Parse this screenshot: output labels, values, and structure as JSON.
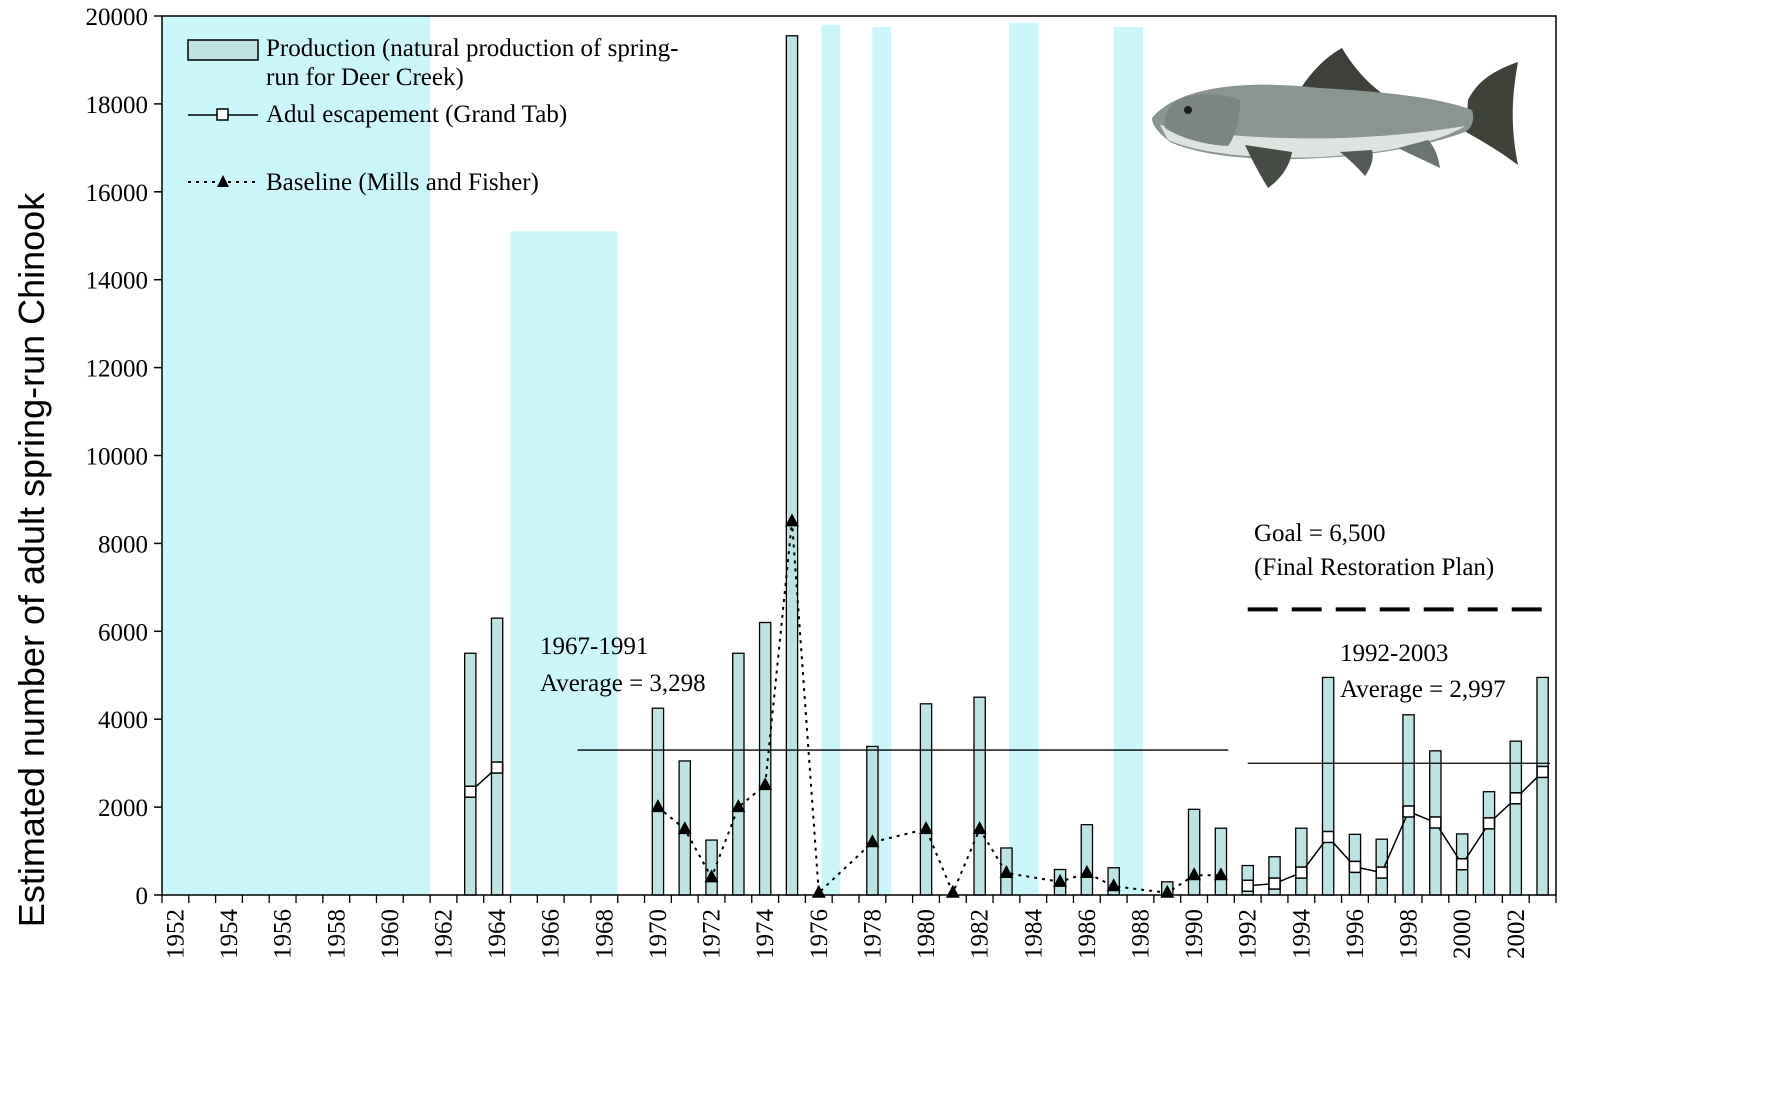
{
  "chart_data": {
    "type": "bar",
    "ylabel": "Estimated number of adult spring-run Chinook",
    "xlabel": "",
    "ylim": [
      0,
      20000
    ],
    "yticks": [
      0,
      2000,
      4000,
      6000,
      8000,
      10000,
      12000,
      14000,
      16000,
      18000,
      20000
    ],
    "xlim": [
      1952,
      2003
    ],
    "xticks": [
      1952,
      1954,
      1956,
      1958,
      1960,
      1962,
      1964,
      1966,
      1968,
      1970,
      1972,
      1974,
      1976,
      1978,
      1980,
      1982,
      1984,
      1986,
      1988,
      1990,
      1992,
      1994,
      1996,
      1998,
      2000,
      2002
    ],
    "grid": false,
    "legend_position": "top-left",
    "series": [
      {
        "name": "Production (natural production of spring-run for Deer Creek)",
        "kind": "bar",
        "color": "#bfe3e3",
        "points": [
          [
            1963,
            5500
          ],
          [
            1964,
            6300
          ],
          [
            1970,
            4250
          ],
          [
            1971,
            3050
          ],
          [
            1972,
            1250
          ],
          [
            1973,
            5500
          ],
          [
            1974,
            6200
          ],
          [
            1975,
            19550
          ],
          [
            1978,
            3380
          ],
          [
            1980,
            4350
          ],
          [
            1982,
            4500
          ],
          [
            1983,
            1070
          ],
          [
            1985,
            580
          ],
          [
            1986,
            1600
          ],
          [
            1987,
            620
          ],
          [
            1989,
            300
          ],
          [
            1990,
            1950
          ],
          [
            1991,
            1520
          ],
          [
            1992,
            670
          ],
          [
            1993,
            870
          ],
          [
            1994,
            1520
          ],
          [
            1995,
            4950
          ],
          [
            1996,
            1380
          ],
          [
            1997,
            1270
          ],
          [
            1998,
            4100
          ],
          [
            1999,
            3280
          ],
          [
            2000,
            1390
          ],
          [
            2001,
            2350
          ],
          [
            2002,
            3500
          ],
          [
            2003,
            4950
          ]
        ]
      },
      {
        "name": "Adul escapement (Grand Tab)",
        "kind": "line",
        "marker": "square-open",
        "color": "#000000",
        "segments": [
          [
            [
              1963,
              2350
            ],
            [
              1964,
              2900
            ]
          ],
          [
            [
              1992,
              210
            ],
            [
              1993,
              260
            ],
            [
              1994,
              510
            ],
            [
              1995,
              1320
            ],
            [
              1996,
              640
            ],
            [
              1997,
              510
            ],
            [
              1998,
              1900
            ],
            [
              1999,
              1650
            ],
            [
              2000,
              700
            ],
            [
              2001,
              1630
            ],
            [
              2002,
              2200
            ],
            [
              2003,
              2800
            ]
          ]
        ]
      },
      {
        "name": "Baseline (Mills and Fisher)",
        "kind": "line",
        "marker": "triangle",
        "dashed": true,
        "color": "#000000",
        "points": [
          [
            1970,
            2000
          ],
          [
            1971,
            1500
          ],
          [
            1972,
            400
          ],
          [
            1973,
            2000
          ],
          [
            1974,
            2500
          ],
          [
            1975,
            8500
          ],
          [
            1976,
            50
          ],
          [
            1978,
            1200
          ],
          [
            1980,
            1500
          ],
          [
            1981,
            50
          ],
          [
            1982,
            1500
          ],
          [
            1983,
            500
          ],
          [
            1985,
            300
          ],
          [
            1986,
            500
          ],
          [
            1987,
            200
          ],
          [
            1989,
            50
          ],
          [
            1990,
            450
          ],
          [
            1991,
            450
          ]
        ]
      }
    ],
    "shaded_regions": [
      {
        "x0": 1952,
        "x1": 1962,
        "ymax": 20000
      },
      {
        "x0": 1952,
        "x1": 1962,
        "ymax": 15100
      },
      {
        "x0": 1965,
        "x1": 1969,
        "ymax": 15100
      },
      {
        "x0": 1976.6,
        "x1": 1977.3,
        "ymax": 19800
      },
      {
        "x0": 1978.5,
        "x1": 1979.2,
        "ymax": 19750
      },
      {
        "x0": 1983.6,
        "x1": 1984.7,
        "ymax": 19850
      },
      {
        "x0": 1987.5,
        "x1": 1988.6,
        "ymax": 19750
      }
    ],
    "shade_color": "#ccf7fa",
    "reference_lines": [
      {
        "x0": 1967,
        "x1": 1991,
        "y": 3298,
        "style": "solid"
      },
      {
        "x0": 1992,
        "x1": 2003,
        "y": 2997,
        "style": "solid"
      },
      {
        "x0": 1992,
        "x1": 2003,
        "y": 6500,
        "style": "dashed"
      }
    ],
    "annotations": {
      "avg1_line1": "1967-1991",
      "avg1_line2": "Average = 3,298",
      "avg2_line1": "1992-2003",
      "avg2_line2": "Average = 2,997",
      "goal_line1": "Goal = 6,500",
      "goal_line2": "(Final Restoration Plan)"
    },
    "legend": [
      {
        "label_line1": "Production (natural production of spring-",
        "label_line2": "run for Deer Creek)",
        "swatch": "bar"
      },
      {
        "label_line1": "Adul escapement (Grand Tab)",
        "swatch": "line-square"
      },
      {
        "label_line1": "Baseline (Mills and Fisher)",
        "swatch": "dotted-triangle"
      }
    ]
  },
  "image": {
    "icon": "salmon-fish-illustration"
  }
}
